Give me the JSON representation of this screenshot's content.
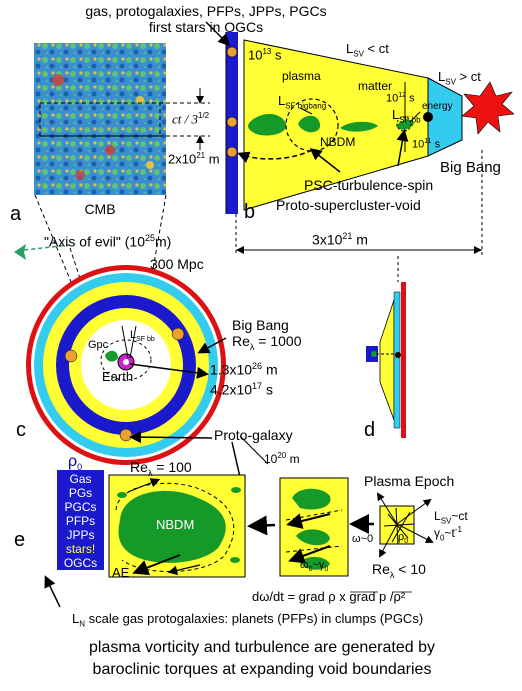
{
  "panel_a": {
    "top_label_1": "gas, protogalaxies, PFPs,  JPPs, PGCs",
    "top_label_2": "first stars in OGCs",
    "cmb_label": "CMB",
    "letter": "a",
    "axis_of_evil": "\"Axis of evil\" (10",
    "axis_exp": "25",
    "axis_unit": "m)",
    "scale_mpc": "300 Mpc",
    "ct_label": "ct / 3",
    "ct_exp": "1/2"
  },
  "panel_b": {
    "letter": "b",
    "lsv_lt": "L",
    "lsv_lt_sub": "SV",
    "lsv_lt_rest": " < ct",
    "lsv_gt": "L",
    "lsv_gt_sub": "SV",
    "lsv_gt_rest": " > ct",
    "t13": "10",
    "t13_exp": "13",
    "t13_unit": " s",
    "plasma": "plasma",
    "matter": "matter",
    "t12": "10",
    "t12_exp": "12",
    "t12_unit": " s",
    "energy": "energy",
    "t11": "10",
    "t11_exp": "11",
    "t11_unit": " s",
    "lsf_bigbang": "L",
    "lsf_bigbang_sub": "SF bigbang",
    "lsf_bb": "L",
    "lsf_bb_sub": "SF bb",
    "nbdm": "NBDM",
    "dist": "2x10",
    "dist_exp": "21",
    "dist_unit": " m",
    "big_bang": "Big Bang",
    "psc": "PSC-turbulence-spin",
    "proto_sc": "Proto-supercluster-void",
    "span": "3x10",
    "span_exp": "21",
    "span_unit": " m"
  },
  "panel_c": {
    "letter": "c",
    "big_bang": "Big Bang",
    "re": "Re",
    "re_sub": "λ",
    "re_val": " = 1000",
    "gpc": "Gpc",
    "lsf": "L",
    "lsf_sub": "SF bb",
    "earth": "Earth",
    "r1": "1.3x10",
    "r1_exp": "26",
    "r1_unit": " m",
    "r2": "4.2x10",
    "r2_exp": "17",
    "r2_unit": " s",
    "proto_galaxy": "Proto-galaxy",
    "size": "10",
    "size_exp": "20",
    "size_unit": " m"
  },
  "panel_d": {
    "letter": "d"
  },
  "panel_e": {
    "letter": "e",
    "rho0": "ρ",
    "rho0_sub": "0",
    "list": [
      "Gas",
      "PGs",
      "PGCs",
      "PFPs",
      "JPPs",
      "stars!",
      "OGCs"
    ],
    "re100": "Re",
    "re100_sub": "λ",
    "re100_val": " = 100",
    "nbdm": "NBDM",
    "ae": "AE",
    "plasma_epoch": "Plasma Epoch",
    "lsv_ct": "L",
    "lsv_ct_sub": "SV",
    "lsv_ct_rest": "~ct",
    "gamma": "γ",
    "gamma_sub": "0",
    "gamma_rest": "~t",
    "gamma_exp": "-1",
    "omega0": "ω~0",
    "rho0_small": "ρ",
    "rho0_small_sub": "0",
    "omega_gamma": "ω",
    "omega_gamma_sub": "0",
    "omega_gamma_rest": "~γ",
    "omega_gamma_sub2": "0",
    "re10": "Re",
    "re10_sub": "λ",
    "re10_val": " < 10",
    "equation": "dω/dt = grad ρ x grad p /ρ²",
    "ln_caption_L": "L",
    "ln_caption_sub": "N",
    "ln_caption_rest": " scale gas protogalaxies: planets (PFPs) in clumps (PGCs)"
  },
  "caption": {
    "line1": "plasma vorticity and turbulence are generated by",
    "line2": "baroclinic torques at expanding void boundaries"
  },
  "colors": {
    "yellow": "#ffff33",
    "blue": "#1a1acc",
    "cyan": "#33ccee",
    "green": "#159a2a",
    "red": "#dd1111",
    "orange": "#e8a030",
    "magenta": "#cc22cc"
  }
}
